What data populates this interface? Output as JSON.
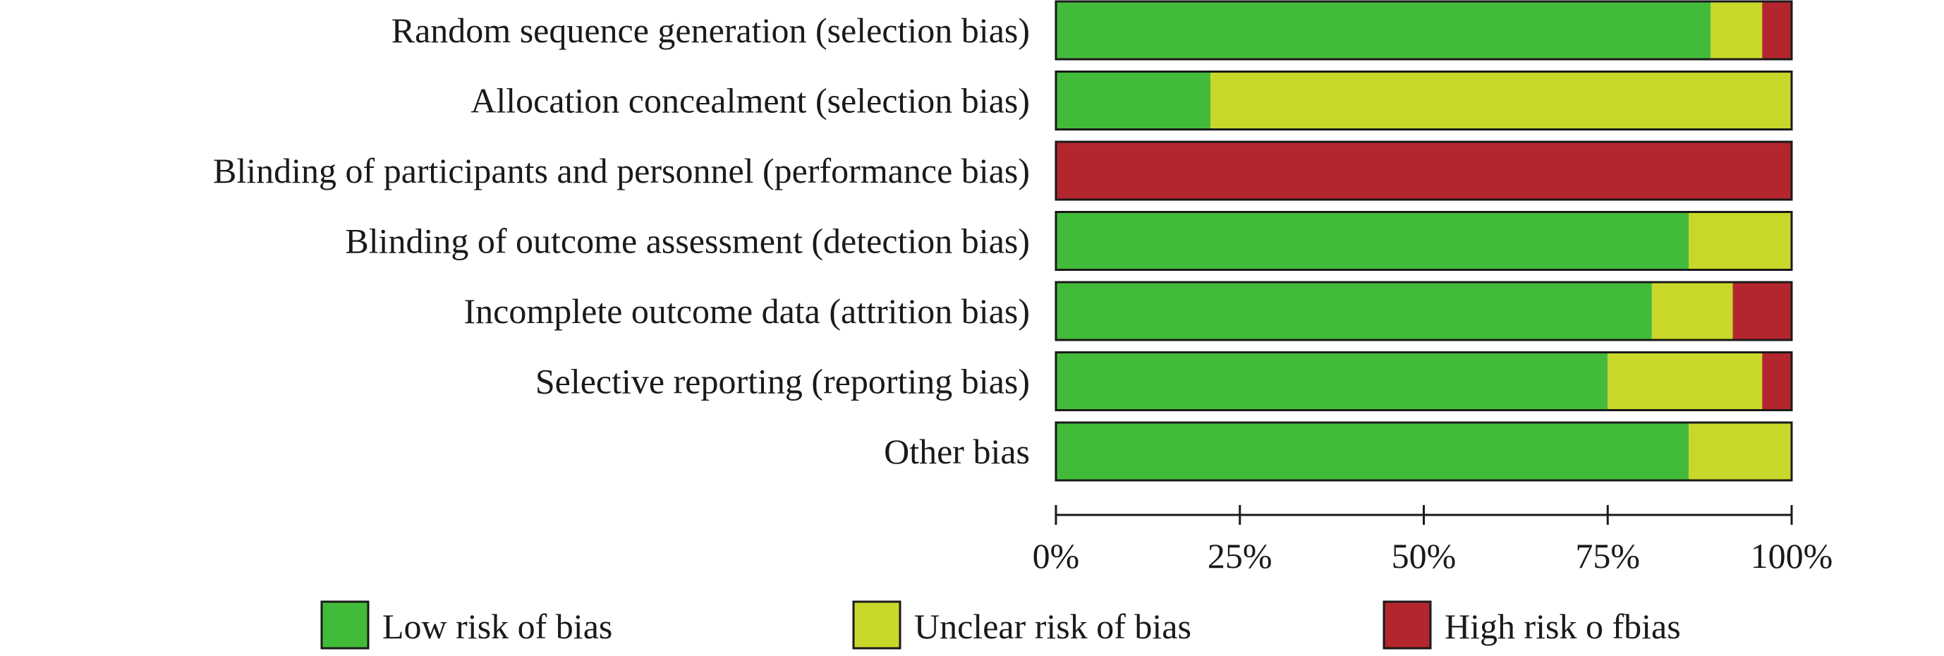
{
  "chart_data": {
    "type": "bar",
    "stacked": true,
    "orientation": "horizontal",
    "categories": [
      "Random sequence generation (selection bias)",
      "Allocation concealment (selection bias)",
      "Blinding of participants and personnel (performance bias)",
      "Blinding of outcome assessment (detection bias)",
      "Incomplete outcome data (attrition bias)",
      "Selective reporting (reporting bias)",
      "Other bias"
    ],
    "series": [
      {
        "name": "Low risk of bias",
        "color": "#43bb3a",
        "values": [
          89,
          21,
          0,
          86,
          81,
          75,
          86
        ]
      },
      {
        "name": "Unclear risk of bias",
        "color": "#c9d72a",
        "values": [
          7,
          79,
          0,
          14,
          11,
          21,
          14
        ]
      },
      {
        "name": "High risk o fbias",
        "color": "#b3262d",
        "values": [
          4,
          0,
          100,
          0,
          8,
          4,
          0
        ]
      }
    ],
    "xlim": [
      0,
      100
    ],
    "xticks": [
      {
        "value": 0,
        "label": "0%"
      },
      {
        "value": 25,
        "label": "25%"
      },
      {
        "value": 50,
        "label": "50%"
      },
      {
        "value": 75,
        "label": "75%"
      },
      {
        "value": 100,
        "label": "100%"
      }
    ],
    "grid": false,
    "legend_position": "bottom",
    "title": "",
    "xlabel": "",
    "ylabel": ""
  }
}
